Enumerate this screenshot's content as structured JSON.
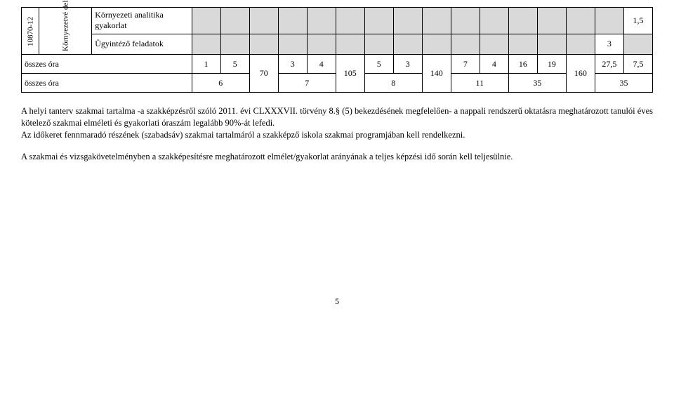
{
  "table": {
    "left_code": "10870-12",
    "left_dept": "Környezetvé\ndelmi\nügyintéző\nfeladatok",
    "row_lab1": "Környezeti analitika gyakorlat",
    "row_lab2": "Ügyintéző feladatok",
    "row_lab3": "összes óra",
    "row_lab4": "összes óra",
    "r1_last": "1,5",
    "r2_v": "3",
    "r3": {
      "c1": "1",
      "c2": "5",
      "c4": "3",
      "c5": "4",
      "c7": "5",
      "c8": "3",
      "c10": "7",
      "c11": "4",
      "c12": "16",
      "c13": "19",
      "c15": "27,5",
      "c16": "7,5"
    },
    "r4": {
      "c2": "6",
      "c5": "7",
      "c8": "8",
      "c11": "11",
      "c13": "35",
      "c16": "35"
    },
    "merge": {
      "c3": "70",
      "c6": "105",
      "c9": "140",
      "c14": "160"
    }
  },
  "para1": "A helyi tanterv szakmai tartalma -a szakképzésről szóló 2011. évi CLXXXVII. törvény 8.§ (5) bekezdésének megfelelően- a nappali rendszerű oktatásra meghatározott tanulói éves kötelező szakmai elméleti és gyakorlati óraszám legalább 90%-át lefedi.",
  "para2": "Az időkeret fennmaradó részének (szabadsáv) szakmai tartalmáról a szakképző iskola szakmai programjában kell rendelkezni.",
  "para3": "A szakmai és vizsgakövetelményben a szakképesítésre meghatározott elmélet/gyakorlat arányának a teljes képzési idő során kell teljesülnie.",
  "page": "5",
  "colors": {
    "shade": "#d9d9d9",
    "bg": "#ffffff",
    "text": "#000000"
  }
}
